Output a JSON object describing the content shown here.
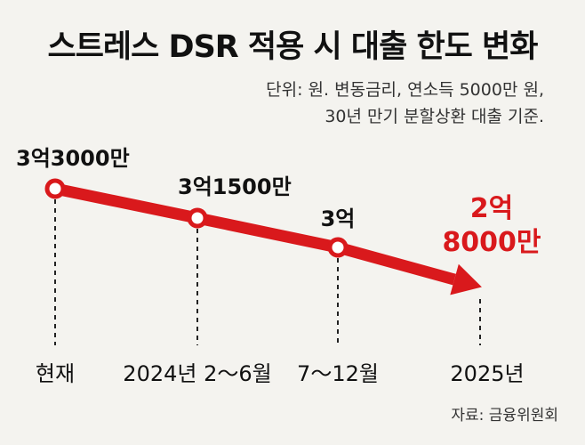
{
  "title": "스트레스 DSR 적용 시 대출 한도 변화",
  "unit_lines": [
    "단위: 원. 변동금리, 연소득 5000만 원,",
    "30년 만기 분할상환 대출 기준."
  ],
  "source": "자료: 금융위원회",
  "colors": {
    "line": "#d9191c",
    "final_label": "#d9191c",
    "background": "#f4f3ef"
  },
  "chart_data": {
    "type": "line",
    "categories": [
      "현재",
      "2024년 2～6월",
      "7～12월",
      "2025년"
    ],
    "values": [
      33000,
      31500,
      30000,
      28000
    ],
    "value_labels": [
      "3억3000만",
      "3억1500만",
      "3억",
      "2억\n8000만"
    ],
    "value_unit": "만 원",
    "markers": [
      true,
      true,
      true,
      false
    ],
    "last_point": "arrow",
    "grid": false,
    "legend": "none"
  }
}
